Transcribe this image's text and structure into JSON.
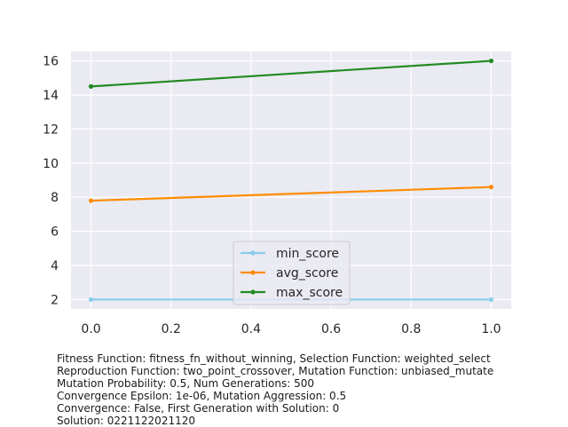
{
  "chart_data": {
    "type": "line",
    "x": [
      0.0,
      1.0
    ],
    "xlim": [
      -0.05,
      1.05
    ],
    "ylim": [
      1.45,
      16.55
    ],
    "xticks": [
      0.0,
      0.2,
      0.4,
      0.6,
      0.8,
      1.0
    ],
    "xtick_labels": [
      "0.0",
      "0.2",
      "0.4",
      "0.6",
      "0.8",
      "1.0"
    ],
    "yticks": [
      2,
      4,
      6,
      8,
      10,
      12,
      14,
      16
    ],
    "ytick_labels": [
      "2",
      "4",
      "6",
      "8",
      "10",
      "12",
      "14",
      "16"
    ],
    "grid": true,
    "legend_position": "lower-center",
    "background": "#eaeaf2",
    "series": [
      {
        "name": "min_score",
        "values": [
          2.0,
          2.0
        ],
        "color": "#87ceeb"
      },
      {
        "name": "avg_score",
        "values": [
          7.8,
          8.6
        ],
        "color": "#ff8c00"
      },
      {
        "name": "max_score",
        "values": [
          14.5,
          16.0
        ],
        "color": "#228b22"
      }
    ]
  },
  "caption": [
    "Fitness Function: fitness_fn_without_winning, Selection Function: weighted_select",
    "Reproduction Function: two_point_crossover, Mutation Function: unbiased_mutate",
    "Mutation Probability: 0.5, Num Generations: 500",
    "Convergence Epsilon: 1e-06, Mutation Aggression: 0.5",
    "Convergence: False, First Generation with Solution: 0",
    "Solution: 0221122021120"
  ]
}
